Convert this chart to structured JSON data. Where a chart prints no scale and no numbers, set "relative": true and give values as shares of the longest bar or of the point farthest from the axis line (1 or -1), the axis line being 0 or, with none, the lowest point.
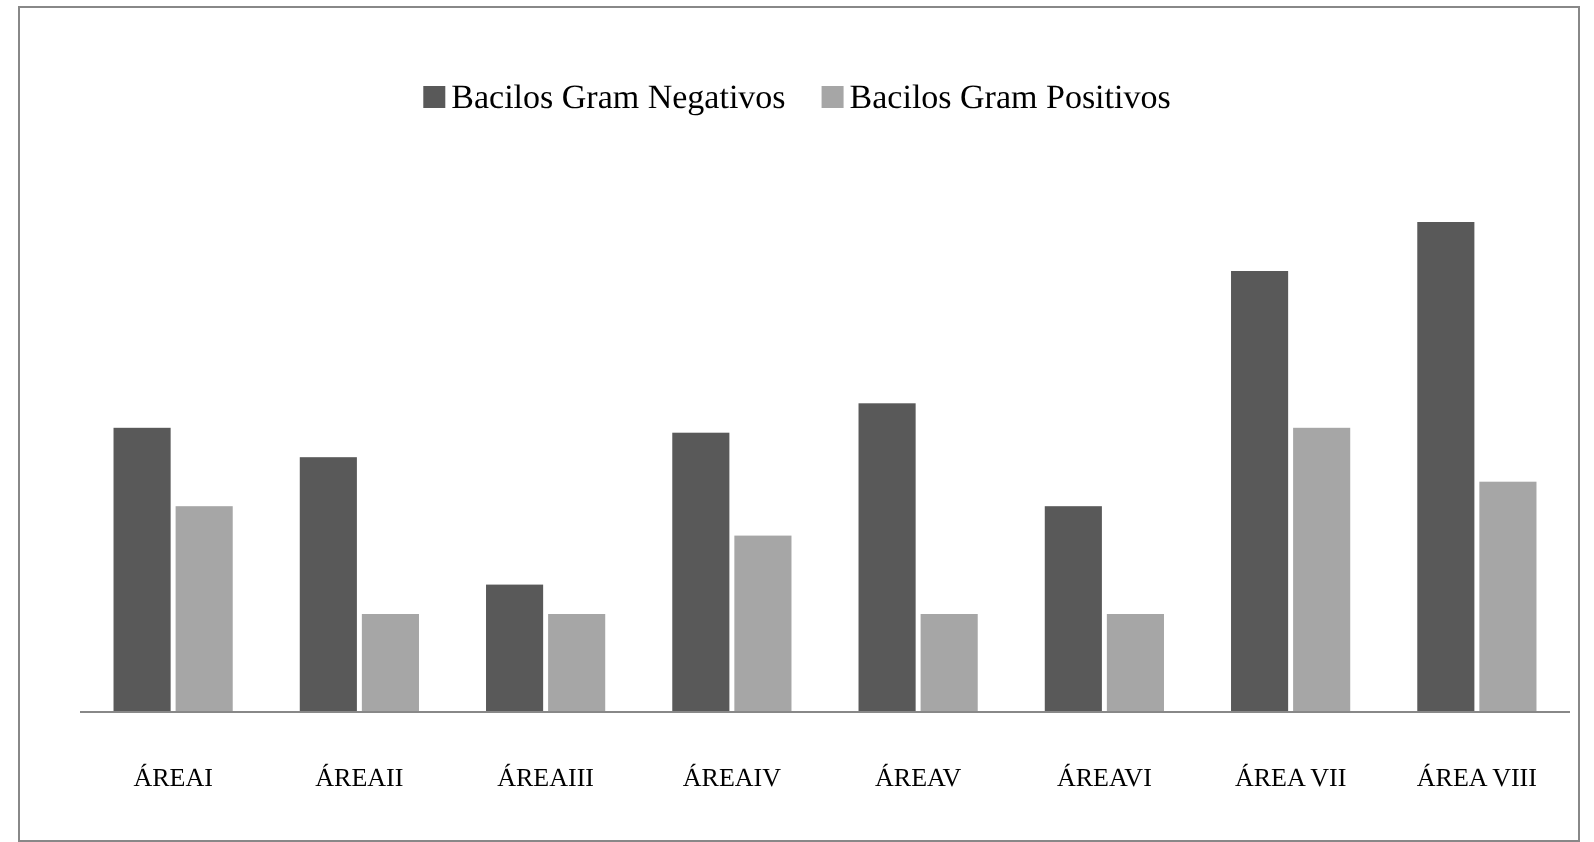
{
  "chart_data": {
    "type": "bar",
    "relative": true,
    "legend": "top",
    "categories": [
      "ÁREAI",
      "ÁREAII",
      "ÁREAIII",
      "ÁREAIV",
      "ÁREAV",
      "ÁREAVI",
      "ÁREA VII",
      "ÁREA VIII"
    ],
    "series": [
      {
        "name": "Bacilos Gram Negativos",
        "color": "#595959",
        "values": [
          0.58,
          0.52,
          0.26,
          0.57,
          0.63,
          0.42,
          0.9,
          1
        ]
      },
      {
        "name": "Bacilos Gram Positivos",
        "color": "#a6a6a6",
        "values": [
          0.42,
          0.2,
          0.2,
          0.36,
          0.2,
          0.2,
          0.58,
          0.47
        ]
      }
    ]
  }
}
